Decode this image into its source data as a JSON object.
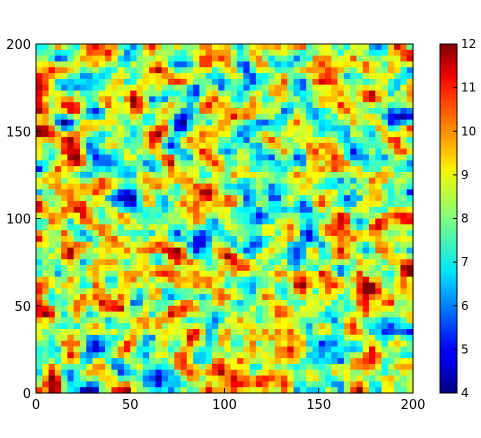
{
  "chart_data": {
    "type": "heatmap",
    "title": "",
    "xlabel": "",
    "ylabel": "",
    "xlim": [
      0,
      200
    ],
    "ylim": [
      0,
      200
    ],
    "x_ticks": [
      "0",
      "50",
      "100",
      "150",
      "200"
    ],
    "y_ticks": [
      "0",
      "50",
      "100",
      "150",
      "200"
    ],
    "colorbar": {
      "colormap": "jet",
      "range": [
        4,
        12
      ],
      "ticks": [
        "4",
        "5",
        "6",
        "7",
        "8",
        "9",
        "10",
        "11",
        "12"
      ]
    },
    "field": {
      "description": "random spatially correlated scalar field on a 200x200 grid",
      "mean": 7.5,
      "min": 4,
      "max": 12
    },
    "grid": false
  }
}
